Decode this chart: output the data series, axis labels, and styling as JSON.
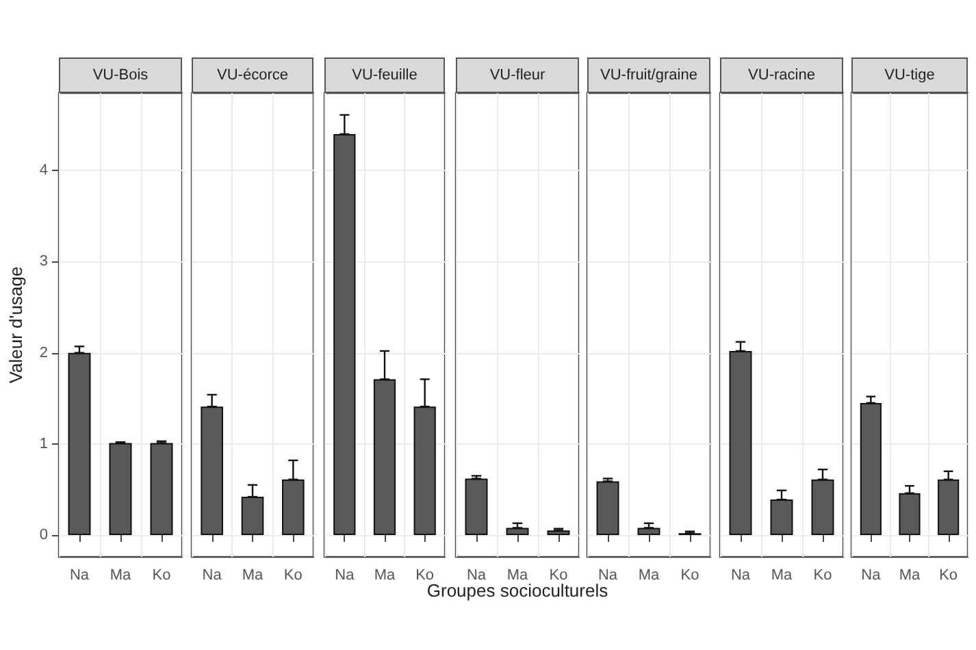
{
  "chart_data": [
    {
      "type": "bar",
      "title": "VU-Bois",
      "ylabel": "Valeur d'usage",
      "categories": [
        "Na",
        "Ma",
        "Ko"
      ],
      "values": [
        2.0,
        1.01,
        1.01
      ],
      "errors": [
        [
          2.0,
          2.07
        ],
        [
          1.01,
          1.02
        ],
        [
          1.01,
          1.03
        ]
      ],
      "color": "#595959",
      "ylim": [
        -0.24,
        4.85
      ],
      "yticks": [
        0,
        1,
        2,
        3,
        4
      ],
      "grid": true
    },
    {
      "type": "bar",
      "title": "VU-écorce",
      "categories": [
        "Na",
        "Ma",
        "Ko"
      ],
      "values": [
        1.41,
        0.42,
        0.61
      ],
      "errors": [
        [
          1.41,
          1.54
        ],
        [
          0.42,
          0.55
        ],
        [
          0.61,
          0.82
        ]
      ],
      "color": "#595959",
      "ylim": [
        -0.24,
        4.85
      ],
      "yticks": [
        0,
        1,
        2,
        3,
        4
      ],
      "grid": true,
      "tick_labels": "x"
    },
    {
      "type": "bar",
      "title": "VU-feuille",
      "categories": [
        "Na",
        "Ma",
        "Ko"
      ],
      "values": [
        4.4,
        1.71,
        1.41
      ],
      "errors": [
        [
          4.4,
          4.61
        ],
        [
          1.71,
          2.02
        ],
        [
          1.41,
          1.71
        ]
      ],
      "color": "#595959",
      "ylim": [
        -0.24,
        4.85
      ],
      "yticks": [
        0,
        1,
        2,
        3,
        4
      ],
      "grid": true,
      "tick_labels": "x"
    },
    {
      "type": "bar",
      "title": "VU-fleur",
      "xlabel": "Groupes socioculturels",
      "categories": [
        "Na",
        "Ma",
        "Ko"
      ],
      "values": [
        0.62,
        0.08,
        0.05
      ],
      "errors": [
        [
          0.62,
          0.65
        ],
        [
          0.08,
          0.13
        ],
        [
          0.05,
          0.07
        ]
      ],
      "color": "#595959",
      "ylim": [
        -0.24,
        4.85
      ],
      "yticks": [
        0,
        1,
        2,
        3,
        4
      ],
      "grid": true,
      "tick_labels": "x"
    },
    {
      "type": "bar",
      "title": "VU-fruit/graine",
      "categories": [
        "Na",
        "Ma",
        "Ko"
      ],
      "values": [
        0.59,
        0.08,
        0.02
      ],
      "errors": [
        [
          0.59,
          0.62
        ],
        [
          0.08,
          0.13
        ],
        [
          0.02,
          0.04
        ]
      ],
      "color": "#595959",
      "ylim": [
        -0.24,
        4.85
      ],
      "yticks": [
        0,
        1,
        2,
        3,
        4
      ],
      "grid": true,
      "tick_labels": "x"
    },
    {
      "type": "bar",
      "title": "VU-racine",
      "categories": [
        "Na",
        "Ma",
        "Ko"
      ],
      "values": [
        2.02,
        0.39,
        0.61
      ],
      "errors": [
        [
          2.02,
          2.12
        ],
        [
          0.39,
          0.49
        ],
        [
          0.61,
          0.72
        ]
      ],
      "color": "#595959",
      "ylim": [
        -0.24,
        4.85
      ],
      "yticks": [
        0,
        1,
        2,
        3,
        4
      ],
      "grid": true,
      "tick_labels": "x"
    },
    {
      "type": "bar",
      "title": "VU-tige",
      "categories": [
        "Na",
        "Ma",
        "Ko"
      ],
      "values": [
        1.45,
        0.46,
        0.61
      ],
      "errors": [
        [
          1.45,
          1.52
        ],
        [
          0.46,
          0.54
        ],
        [
          0.61,
          0.7
        ]
      ],
      "color": "#595959",
      "ylim": [
        -0.24,
        4.85
      ],
      "yticks": [
        0,
        1,
        2,
        3,
        4
      ],
      "grid": true,
      "tick_labels": "x"
    }
  ]
}
